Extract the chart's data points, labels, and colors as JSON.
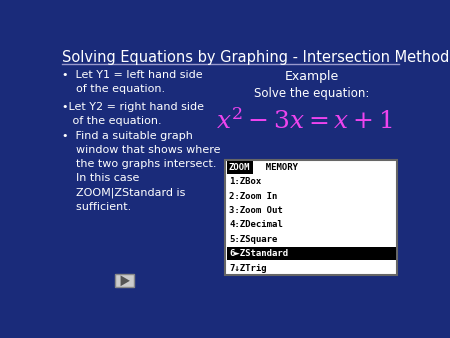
{
  "title": "Solving Equations by Graphing - Intersection Method",
  "bg_color": "#1a2b7a",
  "title_color": "#ffffff",
  "title_fontsize": 10.5,
  "line_color": "#9999cc",
  "bullet1": "•  Let Y1 = left hand side\n    of the equation.",
  "bullet2": "•Let Y2 = right hand side\n   of the equation.",
  "bullet3": "•  Find a suitable graph\n    window that shows where\n    the two graphs intersect.\n    In this case\n    ZOOM|ZStandard is\n    sufficient.",
  "example_label": "Example",
  "example_sub": "Solve the equation:",
  "equation_color": "#ee44ee",
  "text_color": "#ffffff",
  "calc_line0_left": "ZOOM",
  "calc_line0_right": "  MEMORY",
  "calc_lines": [
    "1:ZBox",
    "2:Zoom In",
    "3:Zoom Out",
    "4:ZDecimal",
    "5:ZSquare",
    "6►ZStandard",
    "7↓ZTrig"
  ],
  "highlight_index": 5,
  "calc_bg": "#ffffff",
  "calc_text": "#000000",
  "calc_highlight_bg": "#000000",
  "calc_highlight_text": "#ffffff",
  "play_btn_color": "#aaaaaa",
  "play_border_color": "#999999"
}
